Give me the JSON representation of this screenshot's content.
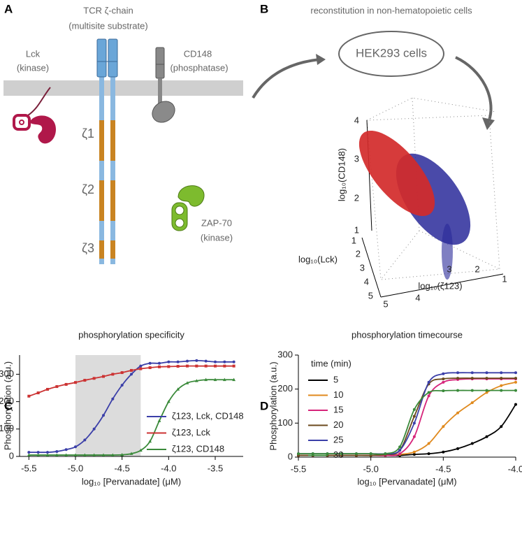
{
  "panel_labels": [
    "A",
    "B",
    "C",
    "D"
  ],
  "diagram_a": {
    "tcr_title": "TCR ζ-chain",
    "tcr_subtitle": "(multisite substrate)",
    "lck": "Lck",
    "lck_role": "(kinase)",
    "cd148": "CD148",
    "cd148_role": "(phosphatase)",
    "segments": [
      "ζ1",
      "ζ2",
      "ζ3"
    ],
    "zap70": "ZAP-70",
    "zap70_role": "(kinase)"
  },
  "diagram_b": {
    "title": "reconstitution in non-hematopoietic cells",
    "cell_label": "HEK293 cells",
    "z_axis_label": "log₁₀(CD148)",
    "y_axis_label": "log₁₀(Lck)",
    "x_axis_label": "log₁₀(ζ123)",
    "z_ticks": [
      4,
      3,
      2,
      1
    ],
    "y_ticks": [
      1,
      2,
      3,
      4,
      5
    ],
    "x_ticks": [
      5,
      4,
      3,
      2,
      1
    ]
  },
  "chart_data": [
    {
      "type": "line",
      "title": "phosphorylation specificity",
      "x_label": "log₁₀ [Pervanadate] (μM)",
      "y_label": "Phosphorylation (a.u.)",
      "x": [
        -5.5,
        -5.4,
        -5.3,
        -5.2,
        -5.1,
        -5.0,
        -4.9,
        -4.8,
        -4.7,
        -4.6,
        -4.5,
        -4.4,
        -4.3,
        -4.2,
        -4.1,
        -4.0,
        -3.9,
        -3.8,
        -3.7,
        -3.6,
        -3.5,
        -3.4,
        -3.3
      ],
      "series": [
        {
          "name": "ζ123, Lck, CD148",
          "color": "#3b3fa8",
          "marker": "circle",
          "values": [
            15,
            15,
            15,
            18,
            25,
            35,
            60,
            100,
            150,
            210,
            260,
            300,
            330,
            340,
            340,
            345,
            345,
            348,
            350,
            348,
            345,
            345,
            345
          ]
        },
        {
          "name": "ζ123, Lck",
          "color": "#cc3333",
          "marker": "square",
          "values": [
            220,
            232,
            245,
            255,
            263,
            270,
            278,
            285,
            292,
            300,
            306,
            314,
            320,
            324,
            327,
            328,
            329,
            330,
            330,
            330,
            330,
            330,
            330
          ]
        },
        {
          "name": "ζ123, CD148",
          "color": "#3a8a3a",
          "marker": "triangle",
          "values": [
            5,
            5,
            5,
            5,
            5,
            5,
            5,
            5,
            5,
            5,
            6,
            10,
            22,
            55,
            130,
            200,
            245,
            268,
            276,
            280,
            280,
            280,
            280
          ]
        }
      ],
      "xlim": [
        -5.6,
        -3.2
      ],
      "ylim": [
        0,
        370
      ],
      "xticks": [
        -5.5,
        {
          "value": -5,
          "label": "-5.0"
        },
        -4.5,
        {
          "value": -4,
          "label": "-4.0"
        },
        -3.5
      ],
      "yticks": [
        0,
        100,
        200,
        300
      ],
      "shaded_region": [
        -5.0,
        -4.3
      ],
      "legend": "lower right"
    },
    {
      "type": "line",
      "title": "phosphorylation timecourse",
      "x_label": "log₁₀ [Pervanadate] (μM)",
      "y_label": "Phosphorylation (a.u.)",
      "legend_title": "time (min)",
      "x": [
        -5.5,
        -5.4,
        -5.3,
        -5.2,
        -5.1,
        -5.0,
        -4.9,
        -4.8,
        -4.7,
        -4.6,
        -4.5,
        -4.4,
        -4.3,
        -4.2,
        -4.1,
        -4.0
      ],
      "series": [
        {
          "name": "5",
          "color": "#000000",
          "marker": "circle",
          "values": [
            5,
            5,
            5,
            5,
            5,
            5,
            5,
            5,
            8,
            10,
            15,
            25,
            40,
            60,
            90,
            155
          ]
        },
        {
          "name": "10",
          "color": "#e08a1e",
          "marker": "circle",
          "values": [
            5,
            5,
            5,
            5,
            5,
            5,
            5,
            8,
            15,
            40,
            90,
            130,
            160,
            190,
            210,
            220
          ]
        },
        {
          "name": "15",
          "color": "#d6247a",
          "marker": "circle",
          "values": [
            5,
            5,
            5,
            5,
            5,
            5,
            5,
            10,
            60,
            180,
            220,
            228,
            230,
            230,
            230,
            230
          ]
        },
        {
          "name": "20",
          "color": "#6b4a1e",
          "marker": "circle",
          "values": [
            5,
            5,
            5,
            5,
            5,
            5,
            8,
            20,
            120,
            215,
            230,
            232,
            232,
            232,
            232,
            232
          ]
        },
        {
          "name": "25",
          "color": "#3b3fa8",
          "marker": "circle",
          "values": [
            10,
            10,
            10,
            10,
            10,
            10,
            10,
            20,
            100,
            220,
            245,
            248,
            248,
            248,
            248,
            248
          ]
        },
        {
          "name": "30",
          "color": "#3a8a3a",
          "marker": "circle",
          "values": [
            10,
            10,
            10,
            10,
            10,
            10,
            10,
            30,
            140,
            190,
            195,
            196,
            196,
            196,
            196,
            196
          ]
        }
      ],
      "xlim": [
        -5.5,
        -4.0
      ],
      "ylim": [
        0,
        300
      ],
      "xticks": [
        -5.5,
        {
          "value": -5,
          "label": "-5.0"
        },
        -4.5,
        {
          "value": -4,
          "label": "-4.0"
        }
      ],
      "yticks": [
        0,
        100,
        200,
        300
      ],
      "legend": "upper left"
    }
  ]
}
